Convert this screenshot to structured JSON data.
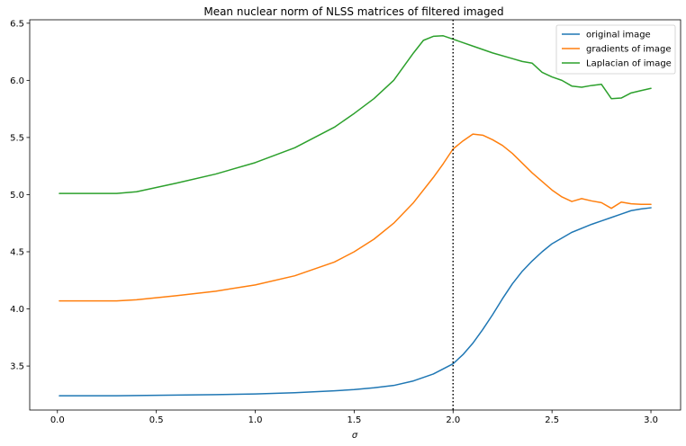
{
  "chart_data": {
    "type": "line",
    "title": "Mean nuclear norm of NLSS matrices of filtered imaged",
    "xlabel": "σ",
    "ylabel": "",
    "xlim": [
      -0.14,
      3.15
    ],
    "ylim": [
      3.115,
      6.53
    ],
    "xticks": [
      0.0,
      0.5,
      1.0,
      1.5,
      2.0,
      2.5,
      3.0
    ],
    "xtick_labels": [
      "0.0",
      "0.5",
      "1.0",
      "1.5",
      "2.0",
      "2.5",
      "3.0"
    ],
    "yticks": [
      3.5,
      4.0,
      4.5,
      5.0,
      5.5,
      6.0,
      6.5
    ],
    "ytick_labels": [
      "3.5",
      "4.0",
      "4.5",
      "5.0",
      "5.5",
      "6.0",
      "6.5"
    ],
    "grid": false,
    "legend": "top-right",
    "vline": {
      "x": 2.0,
      "style": "dotted",
      "color": "#000000"
    },
    "series": [
      {
        "name": "original image",
        "color": "#1f77b4",
        "x": [
          0.01,
          0.3,
          0.5,
          0.8,
          1.0,
          1.2,
          1.4,
          1.5,
          1.6,
          1.7,
          1.8,
          1.9,
          2.0,
          2.05,
          2.1,
          2.15,
          2.2,
          2.25,
          2.3,
          2.35,
          2.4,
          2.45,
          2.5,
          2.6,
          2.7,
          2.75,
          2.8,
          2.85,
          2.9,
          2.95,
          3.0
        ],
        "y": [
          3.24,
          3.24,
          3.244,
          3.25,
          3.256,
          3.266,
          3.283,
          3.294,
          3.31,
          3.33,
          3.37,
          3.43,
          3.52,
          3.6,
          3.7,
          3.82,
          3.95,
          4.09,
          4.22,
          4.33,
          4.42,
          4.5,
          4.57,
          4.67,
          4.74,
          4.77,
          4.8,
          4.83,
          4.86,
          4.875,
          4.885
        ]
      },
      {
        "name": "gradients of image",
        "color": "#ff7f0e",
        "x": [
          0.01,
          0.3,
          0.4,
          0.6,
          0.8,
          1.0,
          1.2,
          1.4,
          1.5,
          1.6,
          1.7,
          1.8,
          1.9,
          1.95,
          2.0,
          2.05,
          2.1,
          2.15,
          2.2,
          2.25,
          2.3,
          2.4,
          2.5,
          2.55,
          2.6,
          2.65,
          2.7,
          2.75,
          2.8,
          2.85,
          2.9,
          2.95,
          3.0
        ],
        "y": [
          4.07,
          4.07,
          4.08,
          4.115,
          4.155,
          4.21,
          4.29,
          4.41,
          4.5,
          4.61,
          4.75,
          4.93,
          5.15,
          5.27,
          5.4,
          5.47,
          5.53,
          5.52,
          5.48,
          5.43,
          5.36,
          5.19,
          5.04,
          4.98,
          4.94,
          4.965,
          4.945,
          4.93,
          4.88,
          4.935,
          4.92,
          4.915,
          4.915
        ]
      },
      {
        "name": "Laplacian of image",
        "color": "#2ca02c",
        "x": [
          0.01,
          0.3,
          0.4,
          0.6,
          0.8,
          1.0,
          1.2,
          1.4,
          1.5,
          1.6,
          1.7,
          1.8,
          1.85,
          1.9,
          1.95,
          2.0,
          2.05,
          2.1,
          2.2,
          2.3,
          2.35,
          2.4,
          2.45,
          2.5,
          2.55,
          2.6,
          2.65,
          2.7,
          2.75,
          2.8,
          2.85,
          2.9,
          2.95,
          3.0
        ],
        "y": [
          5.01,
          5.01,
          5.025,
          5.1,
          5.18,
          5.28,
          5.41,
          5.59,
          5.71,
          5.84,
          6.0,
          6.24,
          6.35,
          6.385,
          6.39,
          6.36,
          6.33,
          6.3,
          6.24,
          6.19,
          6.165,
          6.15,
          6.07,
          6.03,
          6.0,
          5.95,
          5.94,
          5.955,
          5.965,
          5.84,
          5.845,
          5.89,
          5.91,
          5.93
        ]
      }
    ]
  }
}
